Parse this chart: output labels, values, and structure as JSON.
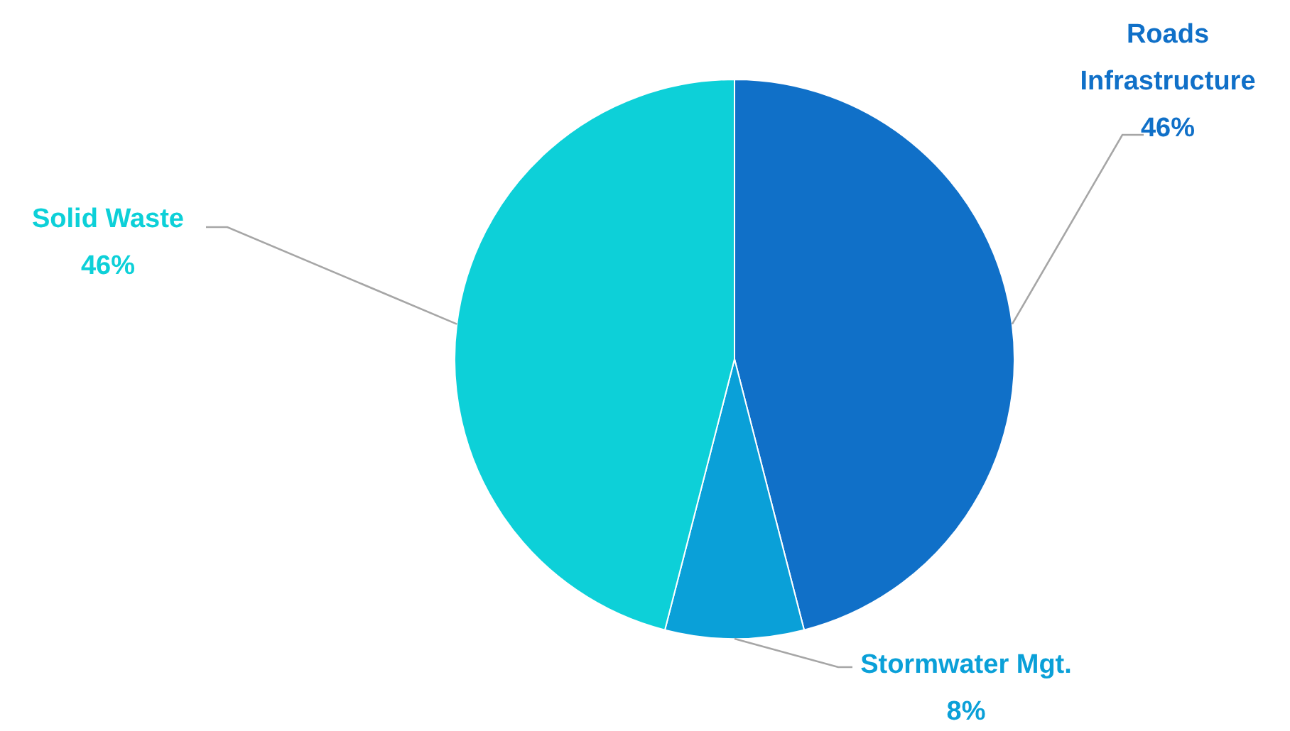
{
  "chart_data": {
    "type": "pie",
    "categories": [
      "Roads Infrastructure",
      "Stormwater Mgt.",
      "Solid Waste"
    ],
    "values": [
      46,
      8,
      46
    ],
    "value_labels": [
      "46%",
      "8%",
      "46%"
    ],
    "colors": [
      "#1070c8",
      "#0aa0d8",
      "#0dd0d8"
    ]
  }
}
